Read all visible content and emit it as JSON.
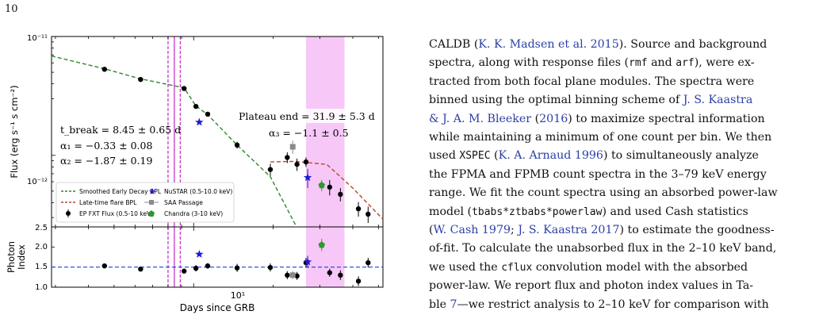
{
  "page_number": "10",
  "figure": {
    "top_panel": {
      "ylabel": "Flux (erg s⁻¹ s cm⁻²)",
      "ytick_top": "10⁻¹¹",
      "ytick_mid": "10⁻¹²",
      "ytick_bottom": "2.5",
      "annotation_left": [
        "t_break = 8.45 ± 0.65 d",
        "α₁ = −0.33 ± 0.08",
        "α₂ = −1.87 ± 0.19"
      ],
      "annotation_right": [
        "Plateau end = 31.9 ± 5.3 d",
        "α₃ = −1.1 ± 0.5"
      ],
      "legend": {
        "smoothed": "Smoothed Early Decay BPL",
        "flare": "Late-time flare BPL",
        "ep": "EP FXT Flux (0.5-10 keV)",
        "nustar": "NuSTAR (0.5-10.0 keV)",
        "saa": "SAA Passage",
        "chandra": "Chandra (3-10 keV)"
      }
    },
    "bottom_panel": {
      "ylabel_line1": "Photon",
      "ylabel_line2": "Index",
      "yticks": [
        "2.0",
        "1.5",
        "1.0"
      ],
      "xtick": "10¹",
      "xlabel": "Days since GRB"
    },
    "colors": {
      "smoothed": "#2a8a2a",
      "flare": "#b4472e",
      "nustar": "#1b1bd6",
      "saa": "#8a8a8a",
      "chandra": "#2a9a2a",
      "band": "#f7c8f7",
      "break_line": "#cc33cc",
      "index_line": "#1f3fd6"
    }
  },
  "chart_data": [
    {
      "type": "scatter",
      "panel": "flux",
      "xlabel": "Days since GRB",
      "ylabel": "Flux (erg s⁻¹ s cm⁻²)",
      "xscale": "log",
      "yscale": "log",
      "xlim": [
        2.9,
        52
      ],
      "ylim": [
        2.5e-13,
        1e-11
      ],
      "series": [
        {
          "name": "EP FXT Flux (0.5-10 keV)",
          "x": [
            4.6,
            6.3,
            9.2,
            10.2,
            11.3,
            14.6,
            19.5,
            22.6,
            24.6,
            26.6,
            32.7,
            35.9,
            42.0,
            45.7
          ],
          "y": [
            5.3e-12,
            4.35e-12,
            3.65e-12,
            2.58e-12,
            2.22e-12,
            1.22e-12,
            7.6e-13,
            9.6e-13,
            8.4e-13,
            8.8e-13,
            5.4e-13,
            4.7e-13,
            3.55e-13,
            3.2e-13
          ],
          "yerr": [
            1.5e-13,
            1.2e-13,
            1.2e-13,
            1e-13,
            1e-13,
            8e-14,
            9e-14,
            1e-13,
            1e-13,
            8e-14,
            8e-14,
            6e-14,
            5e-14,
            5e-14
          ]
        },
        {
          "name": "NuSTAR (0.5-10.0 keV)",
          "x": [
            10.5,
            27.0
          ],
          "y": [
            1.9e-12,
            6.5e-13
          ],
          "yerr": [
            0,
            1.2e-13
          ]
        },
        {
          "name": "SAA Passage",
          "x": [
            23.7
          ],
          "y": [
            1.18e-12
          ],
          "yerr": [
            1.5e-13
          ]
        },
        {
          "name": "Chandra (3-10 keV)",
          "x": [
            30.5
          ],
          "y": [
            5.6e-13
          ],
          "yerr": [
            6e-14
          ]
        }
      ],
      "model_curves": [
        {
          "name": "Smoothed Early Decay BPL",
          "x": [
            2.9,
            4.6,
            6.3,
            9.2,
            10.2,
            11.3,
            14.6,
            19.5,
            24.5
          ],
          "y": [
            6.85e-12,
            5.35e-12,
            4.4e-12,
            3.7e-12,
            2.6e-12,
            2.2e-12,
            1.22e-12,
            6.6e-13,
            2.5e-13
          ]
        },
        {
          "name": "Late-time flare BPL",
          "x": [
            19.5,
            24.0,
            31.9,
            40.0,
            52.0
          ],
          "y": [
            8.8e-13,
            8.9e-13,
            8.4e-13,
            5.3e-13,
            2.9e-13
          ]
        }
      ],
      "vertical_lines_days": [
        8.0,
        8.45,
        8.9
      ],
      "shaded_interval_days": [
        26.6,
        37.2
      ],
      "grid": false,
      "legend_position": "lower-left"
    },
    {
      "type": "scatter",
      "panel": "photon_index",
      "xlabel": "Days since GRB",
      "ylabel": "Photon Index",
      "xscale": "log",
      "xlim": [
        2.9,
        52
      ],
      "ylim": [
        1.0,
        2.5
      ],
      "reference_line_y": 1.5,
      "series": [
        {
          "name": "EP FXT Flux (0.5-10 keV)",
          "x": [
            4.6,
            6.3,
            9.2,
            10.2,
            11.3,
            14.6,
            19.5,
            22.6,
            24.6,
            26.6,
            32.7,
            35.9,
            42.0,
            45.7
          ],
          "y": [
            1.53,
            1.45,
            1.4,
            1.47,
            1.53,
            1.48,
            1.49,
            1.3,
            1.28,
            1.61,
            1.36,
            1.3,
            1.15,
            1.61
          ],
          "yerr": [
            0.05,
            0.04,
            0.04,
            0.08,
            0.07,
            0.1,
            0.1,
            0.1,
            0.1,
            0.12,
            0.1,
            0.12,
            0.12,
            0.12
          ]
        },
        {
          "name": "NuSTAR (0.5-10.0 keV)",
          "x": [
            10.5,
            27.0
          ],
          "y": [
            1.82,
            1.63
          ],
          "yerr": [
            0,
            0.15
          ]
        },
        {
          "name": "SAA Passage",
          "x": [
            23.7
          ],
          "y": [
            1.3
          ],
          "yerr": [
            0.1
          ]
        },
        {
          "name": "Chandra (3-10 keV)",
          "x": [
            30.5
          ],
          "y": [
            2.05
          ],
          "yerr": [
            0.15
          ]
        }
      ],
      "grid": false
    }
  ],
  "body_text": {
    "lines": [
      "CALDB (",
      "K. K. Madsen et al. 2015",
      "). Source and background",
      "spectra, along with response files (",
      "rmf",
      " and ",
      "arf",
      "), were ex-",
      "tracted from both focal plane modules.  The spectra were",
      "binned using the optimal binning scheme of ",
      "J. S. Kaastra",
      "& J. A. M. Bleeker",
      " (",
      "2016",
      ") to maximize spectral information",
      "while maintaining a minimum of one count per bin. We then",
      "used ",
      "XSPEC",
      " (",
      "K. A. Arnaud 1996",
      ") to simultaneously analyze",
      "the FPMA and FPMB count spectra in the 3–79 keV energy",
      "range. We fit the count spectra using an absorbed power-law",
      "model (",
      "tbabs*ztbabs*powerlaw",
      ") and used Cash statistics",
      "(",
      "W. Cash 1979",
      "; ",
      "J. S. Kaastra 2017",
      ") to estimate the goodness-",
      "of-fit. To calculate the unabsorbed flux in the 2–10 keV band,",
      "we used the ",
      "cflux",
      " convolution model with the absorbed",
      "power-law.  We report flux and photon index values in Ta-",
      "ble ",
      "7",
      "—we restrict analysis to 2–10 keV for comparison with"
    ]
  }
}
